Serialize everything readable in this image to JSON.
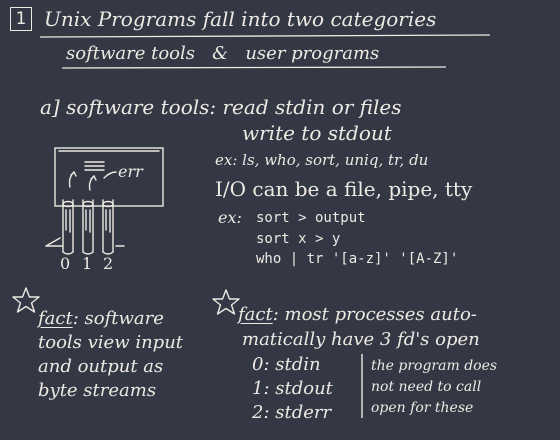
{
  "header": {
    "number": "1",
    "title": "Unix Programs fall into two categories",
    "subtitle": "software tools   &   user programs"
  },
  "section_a": {
    "heading": "a] software tools: read stdin or files",
    "heading_line2": "write to stdout",
    "example1": "ex: ls, who, sort, uniq, tr, du",
    "io_line": "I/O can be a file, pipe, tty",
    "example2_label": "ex:",
    "example2_lines": [
      "sort > output",
      "sort x > y",
      "who | tr '[a-z]' '[A-Z]'"
    ]
  },
  "diagram": {
    "err_label": "err",
    "fd_labels": [
      "0",
      "1",
      "2"
    ]
  },
  "fact_left": {
    "label": "fact",
    "lines": [
      ": software",
      "tools view input",
      "and output as",
      "byte streams"
    ]
  },
  "fact_right": {
    "label": "fact",
    "lines": [
      ": most processes auto-",
      "matically have 3 fd's open"
    ],
    "fds": [
      "0: stdin",
      "1: stdout",
      "2: stderr"
    ],
    "note": [
      "the program does",
      "not need to call",
      "open for these"
    ]
  }
}
